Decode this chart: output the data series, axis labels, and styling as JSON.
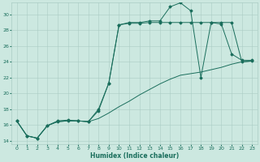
{
  "xlabel": "Humidex (Indice chaleur)",
  "background_color": "#cce8e0",
  "grid_color": "#aaccc4",
  "line_color": "#1a6e5c",
  "xlim": [
    -0.5,
    23.5
  ],
  "ylim": [
    13.5,
    31.5
  ],
  "yticks": [
    14,
    16,
    18,
    20,
    22,
    24,
    26,
    28,
    30
  ],
  "xticks": [
    0,
    1,
    2,
    3,
    4,
    5,
    6,
    7,
    8,
    9,
    10,
    11,
    12,
    13,
    14,
    15,
    16,
    17,
    18,
    19,
    20,
    21,
    22,
    23
  ],
  "line_straight_x": [
    0,
    1,
    2,
    3,
    4,
    5,
    6,
    7,
    8,
    9,
    10,
    11,
    12,
    13,
    14,
    15,
    16,
    17,
    18,
    19,
    20,
    21,
    22,
    23
  ],
  "line_straight_y": [
    16.5,
    14.6,
    14.3,
    15.9,
    16.4,
    16.5,
    16.5,
    16.4,
    16.8,
    17.5,
    18.3,
    19.0,
    19.8,
    20.5,
    21.2,
    21.8,
    22.3,
    22.5,
    22.7,
    23.0,
    23.3,
    23.7,
    24.0,
    24.1
  ],
  "line_mid_x": [
    0,
    1,
    2,
    3,
    4,
    5,
    6,
    7,
    8,
    9,
    10,
    11,
    12,
    13,
    14,
    15,
    16,
    17,
    18,
    19,
    20,
    21,
    22,
    23
  ],
  "line_mid_y": [
    16.5,
    14.6,
    14.3,
    15.9,
    16.4,
    16.5,
    16.5,
    16.4,
    17.8,
    21.3,
    28.7,
    28.9,
    28.9,
    29.0,
    29.0,
    29.0,
    29.0,
    29.0,
    29.0,
    29.0,
    29.0,
    29.0,
    24.0,
    24.1
  ],
  "line_top_x": [
    0,
    1,
    2,
    3,
    4,
    5,
    6,
    7,
    8,
    9,
    10,
    11,
    12,
    13,
    14,
    15,
    16,
    17,
    18,
    19,
    20,
    21,
    22,
    23
  ],
  "line_top_y": [
    16.5,
    14.6,
    14.3,
    15.9,
    16.5,
    16.6,
    16.5,
    16.4,
    18.0,
    21.3,
    28.7,
    29.0,
    29.0,
    29.2,
    29.2,
    31.0,
    31.5,
    30.5,
    22.0,
    29.0,
    28.8,
    25.0,
    24.2,
    24.2
  ]
}
